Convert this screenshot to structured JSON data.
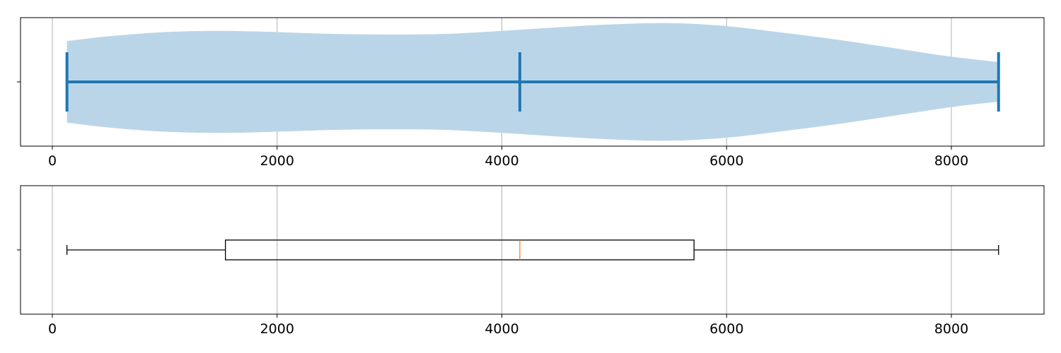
{
  "chart_data": [
    {
      "type": "violin",
      "title": "",
      "xlabel": "",
      "ylabel": "",
      "xlim": [
        -280,
        8840
      ],
      "grid": "vertical",
      "xticks": [
        0,
        2000,
        4000,
        6000,
        8000
      ],
      "xtick_labels": [
        "0",
        "2000",
        "4000",
        "6000",
        "8000"
      ],
      "min": 130,
      "median": 4160,
      "max": 8420,
      "density_profile": {
        "x": [
          130,
          500,
          1000,
          1500,
          2000,
          2500,
          3000,
          3500,
          4000,
          4500,
          5000,
          5500,
          6000,
          6500,
          7000,
          7500,
          8000,
          8420
        ],
        "relative_width": [
          0.68,
          0.76,
          0.83,
          0.85,
          0.83,
          0.8,
          0.79,
          0.8,
          0.85,
          0.91,
          0.96,
          0.98,
          0.93,
          0.82,
          0.7,
          0.56,
          0.42,
          0.33
        ]
      },
      "colors": {
        "body": "#bbd5e8",
        "lines": "#1f77b4"
      }
    },
    {
      "type": "box",
      "title": "",
      "xlabel": "",
      "ylabel": "",
      "xlim": [
        -280,
        8840
      ],
      "grid": "vertical",
      "xticks": [
        0,
        2000,
        4000,
        6000,
        8000
      ],
      "xtick_labels": [
        "0",
        "2000",
        "4000",
        "6000",
        "8000"
      ],
      "whisker_low": 130,
      "q1": 1540,
      "median": 4160,
      "q3": 5710,
      "whisker_high": 8420,
      "colors": {
        "box": "#000000",
        "median": "#ff7f0e"
      }
    }
  ]
}
